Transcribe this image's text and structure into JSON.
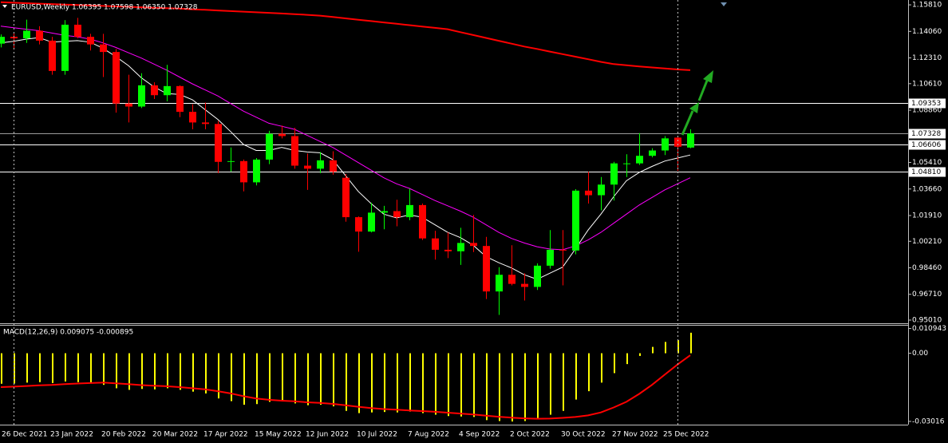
{
  "chart_data": [
    {
      "type": "candlestick",
      "title": "EURUSD,Weekly  1.06395 1.07598 1.06350 1.07328",
      "categories": [
        "26 Dec 2021",
        null,
        null,
        null,
        "23 Jan 2022",
        null,
        null,
        null,
        "20 Feb 2022",
        null,
        null,
        null,
        "20 Mar 2022",
        null,
        null,
        null,
        "17 Apr 2022",
        null,
        null,
        null,
        "15 May 2022",
        null,
        null,
        null,
        "12 Jun 2022",
        null,
        null,
        null,
        "10 Jul 2022",
        null,
        null,
        null,
        "7 Aug 2022",
        null,
        null,
        null,
        "4 Sep 2022",
        null,
        null,
        null,
        "2 Oct 2022",
        null,
        null,
        null,
        "30 Oct 2022",
        null,
        null,
        null,
        "27 Nov 2022",
        null,
        null,
        null,
        "25 Dec 2022",
        null,
        null
      ],
      "open": [
        1.1325,
        1.137,
        1.136,
        1.141,
        1.1345,
        1.1145,
        1.145,
        1.137,
        1.132,
        1.127,
        1.093,
        1.091,
        1.105,
        1.0985,
        1.1045,
        1.0875,
        1.0805,
        1.0795,
        1.0545,
        1.055,
        1.041,
        1.056,
        1.073,
        1.0715,
        1.052,
        1.05,
        1.0555,
        1.044,
        1.018,
        1.0085,
        1.021,
        1.022,
        1.018,
        1.026,
        1.004,
        0.9965,
        0.9955,
        1.001,
        0.999,
        0.969,
        0.98,
        0.974,
        0.972,
        0.986,
        0.9965,
        0.996,
        1.0355,
        1.0325,
        1.0395,
        1.0535,
        1.0535,
        1.0585,
        1.062,
        1.0705,
        1.06395
      ],
      "high": [
        1.1386,
        1.14,
        1.1483,
        1.144,
        1.137,
        1.148,
        1.1495,
        1.139,
        1.139,
        1.129,
        1.112,
        1.113,
        1.107,
        1.1185,
        1.105,
        1.0925,
        1.0936,
        1.0815,
        1.064,
        1.056,
        1.057,
        1.075,
        1.0785,
        1.077,
        1.06,
        1.061,
        1.0615,
        1.0465,
        1.0185,
        1.0275,
        1.0255,
        1.0295,
        1.0368,
        1.027,
        1.009,
        1.008,
        1.011,
        1.0195,
        1.005,
        0.985,
        0.9995,
        0.981,
        0.9875,
        1.0095,
        1.0095,
        1.0365,
        1.048,
        1.0445,
        1.0545,
        1.0595,
        1.0735,
        1.0635,
        1.0715,
        1.0715,
        1.07598
      ],
      "low": [
        1.13,
        1.1285,
        1.133,
        1.132,
        1.112,
        1.112,
        1.136,
        1.128,
        1.1105,
        1.087,
        1.0805,
        1.09,
        1.096,
        1.0945,
        1.084,
        1.076,
        1.076,
        1.047,
        1.048,
        1.035,
        1.039,
        1.053,
        1.07,
        1.05,
        1.036,
        1.047,
        1.046,
        1.015,
        0.9952,
        1.008,
        1.01,
        1.012,
        1.016,
        1.003,
        0.99,
        0.991,
        0.9865,
        0.995,
        0.964,
        0.9535,
        0.973,
        0.963,
        0.97,
        0.984,
        0.973,
        0.9935,
        1.027,
        1.0225,
        1.029,
        1.0445,
        1.0525,
        1.0575,
        1.059,
        1.0485,
        1.0635
      ],
      "close": [
        1.137,
        1.136,
        1.141,
        1.1345,
        1.1145,
        1.145,
        1.137,
        1.132,
        1.127,
        1.093,
        1.091,
        1.105,
        1.0985,
        1.1045,
        1.0875,
        1.0805,
        1.0795,
        1.0545,
        1.055,
        1.041,
        1.056,
        1.073,
        1.0715,
        1.052,
        1.05,
        1.0555,
        1.048,
        1.018,
        1.0085,
        1.021,
        1.022,
        1.018,
        1.026,
        1.004,
        0.9965,
        0.9955,
        1.001,
        0.999,
        0.969,
        0.98,
        0.974,
        0.972,
        0.986,
        0.9965,
        0.996,
        1.0355,
        1.0325,
        1.0395,
        1.0535,
        1.0535,
        1.0585,
        1.062,
        1.07,
        1.0645,
        1.07328
      ],
      "up_color": "#00ff00",
      "down_color": "#ff0000",
      "overlays": [
        {
          "color": "#ff0000",
          "values": [
            1.1598,
            1.1595,
            1.1592,
            1.1589,
            1.1586,
            1.1583,
            1.158,
            1.1577,
            1.1574,
            1.1571,
            1.1568,
            1.1565,
            1.1562,
            1.1559,
            1.1556,
            1.1552,
            1.1548,
            1.1544,
            1.154,
            1.1536,
            1.1532,
            1.1528,
            1.1524,
            1.152,
            1.1515,
            1.151,
            1.1501,
            1.1492,
            1.1483,
            1.1474,
            1.1465,
            1.1456,
            1.1447,
            1.1438,
            1.1429,
            1.142,
            1.1401,
            1.1382,
            1.1363,
            1.1344,
            1.1325,
            1.1306,
            1.129,
            1.1273,
            1.1256,
            1.1239,
            1.1222,
            1.1205,
            1.119,
            1.1182,
            1.1175,
            1.1168,
            1.1161,
            1.1155,
            1.115
          ]
        },
        {
          "color": "#ff00ff",
          "values": [
            1.144,
            1.143,
            1.142,
            1.141,
            1.1395,
            1.138,
            1.137,
            1.1355,
            1.133,
            1.13,
            1.1265,
            1.123,
            1.119,
            1.115,
            1.1105,
            1.106,
            1.102,
            1.098,
            1.093,
            1.088,
            1.084,
            1.08,
            1.078,
            1.076,
            1.072,
            1.068,
            1.064,
            1.059,
            1.054,
            1.049,
            1.044,
            1.04,
            1.037,
            1.033,
            1.029,
            1.0255,
            1.022,
            1.018,
            1.013,
            1.008,
            1.004,
            1.001,
            0.9985,
            0.997,
            0.9965,
            0.999,
            1.003,
            1.008,
            1.014,
            1.02,
            1.026,
            1.031,
            1.036,
            1.04,
            1.044
          ]
        },
        {
          "color": "#ffffff",
          "values": [
            1.133,
            1.134,
            1.1355,
            1.1365,
            1.1335,
            1.134,
            1.1345,
            1.1335,
            1.1295,
            1.124,
            1.118,
            1.11,
            1.104,
            1.0995,
            1.099,
            1.0955,
            1.089,
            1.0825,
            1.0745,
            1.066,
            1.062,
            1.062,
            1.064,
            1.062,
            1.061,
            1.0605,
            1.056,
            1.0455,
            1.035,
            1.027,
            1.02,
            1.0175,
            1.0195,
            1.018,
            1.013,
            1.008,
            1.0045,
            0.9995,
            0.992,
            0.988,
            0.9845,
            0.98,
            0.977,
            0.981,
            0.985,
            0.997,
            1.0095,
            1.02,
            1.0315,
            1.042,
            1.0475,
            1.0515,
            1.055,
            1.057,
            1.059
          ]
        }
      ],
      "levels": [
        {
          "value": 1.09353,
          "color": "#ffffff"
        },
        {
          "value": 1.07328,
          "color": "#9a9a9a"
        },
        {
          "value": 1.06606,
          "color": "#ffffff"
        },
        {
          "value": 1.0481,
          "label": "1.04810",
          "color": "#ffffff"
        }
      ],
      "ylim": [
        0.948,
        1.1613
      ],
      "yticks": [
        {
          "value": 1.1581,
          "label": "1.15810"
        },
        {
          "value": 1.1406,
          "label": "1.14060"
        },
        {
          "value": 1.1231,
          "label": "1.12310"
        },
        {
          "value": 1.1061,
          "label": "1.10610"
        },
        {
          "value": 1.0886,
          "label": "1.08860"
        },
        {
          "value": 1.0541,
          "label": "1.05410"
        },
        {
          "value": 1.0366,
          "label": "1.03660"
        },
        {
          "value": 1.0191,
          "label": "1.01910"
        },
        {
          "value": 1.0021,
          "label": "1.00210"
        },
        {
          "value": 0.9846,
          "label": "0.98460"
        },
        {
          "value": 0.9671,
          "label": "0.96710"
        },
        {
          "value": 0.9501,
          "label": "0.95010"
        }
      ]
    },
    {
      "type": "macd",
      "title": "MACD(12,26,9) 0.009075 -0.000895",
      "histogram": {
        "color": "#ffff00",
        "values": [
          -0.0135,
          -0.0134,
          -0.013,
          -0.0128,
          -0.0132,
          -0.0125,
          -0.0128,
          -0.013,
          -0.014,
          -0.0155,
          -0.0162,
          -0.0158,
          -0.016,
          -0.0155,
          -0.0162,
          -0.017,
          -0.0178,
          -0.02,
          -0.0212,
          -0.0228,
          -0.0225,
          -0.0215,
          -0.0212,
          -0.0222,
          -0.023,
          -0.0228,
          -0.0235,
          -0.0255,
          -0.0265,
          -0.0262,
          -0.026,
          -0.0262,
          -0.0258,
          -0.0265,
          -0.0272,
          -0.0278,
          -0.028,
          -0.0282,
          -0.0296,
          -0.03,
          -0.0302,
          -0.03,
          -0.029,
          -0.0272,
          -0.0255,
          -0.0205,
          -0.0168,
          -0.013,
          -0.0088,
          -0.0048,
          -0.0012,
          0.0028,
          0.005,
          0.0058,
          0.009075
        ]
      },
      "signal": {
        "color": "#ff0000",
        "values": [
          -0.015,
          -0.0148,
          -0.0145,
          -0.0142,
          -0.014,
          -0.0137,
          -0.0134,
          -0.0132,
          -0.013,
          -0.0133,
          -0.0137,
          -0.0141,
          -0.0144,
          -0.0146,
          -0.015,
          -0.0155,
          -0.016,
          -0.0168,
          -0.0178,
          -0.019,
          -0.02,
          -0.0206,
          -0.021,
          -0.0213,
          -0.0217,
          -0.022,
          -0.0224,
          -0.023,
          -0.0237,
          -0.0243,
          -0.0247,
          -0.025,
          -0.0253,
          -0.0256,
          -0.0259,
          -0.0263,
          -0.0267,
          -0.0271,
          -0.0276,
          -0.0281,
          -0.0285,
          -0.0288,
          -0.029,
          -0.0289,
          -0.0286,
          -0.0282,
          -0.0275,
          -0.0262,
          -0.024,
          -0.0215,
          -0.018,
          -0.014,
          -0.0095,
          -0.005,
          -0.000895
        ]
      },
      "ylim": [
        -0.0316,
        0.0122
      ],
      "yticks": [
        0.010943,
        {
          "value": 0,
          "label": "0.00"
        },
        -0.03016
      ]
    }
  ]
}
